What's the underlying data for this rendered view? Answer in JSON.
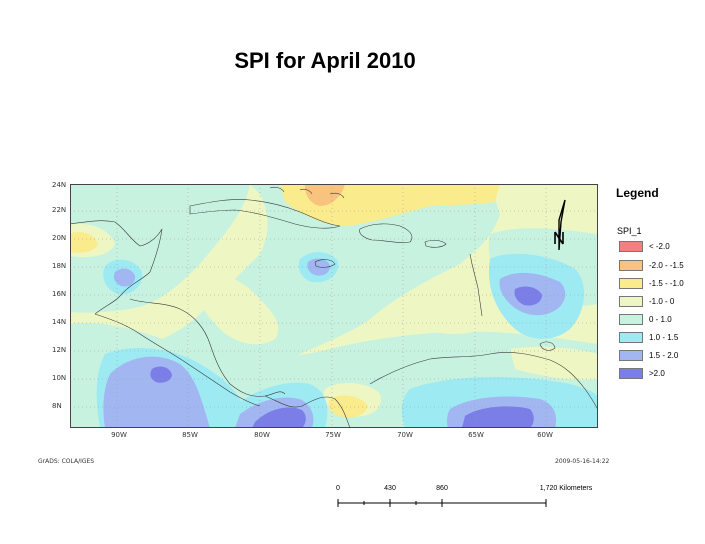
{
  "title": "SPI for  April 2010",
  "legend": {
    "heading": "Legend",
    "field": "SPI_1",
    "items": [
      {
        "label": "< -2.0",
        "color": "#f47f7f"
      },
      {
        "label": "-2.0 - -1.5",
        "color": "#f8c37f"
      },
      {
        "label": "-1.5 -  -1.0",
        "color": "#faeb8c"
      },
      {
        "label": "-1.0 - 0",
        "color": "#eef7c3"
      },
      {
        "label": "0 - 1.0",
        "color": "#c6f2df"
      },
      {
        "label": "1.0 - 1.5",
        "color": "#9deaf3"
      },
      {
        "label": "1.5 - 2.0",
        "color": "#a2b7f2"
      },
      {
        "label": ">2.0",
        "color": "#7b7ee6"
      }
    ]
  },
  "axes": {
    "lat_labels": [
      "24N",
      "22N",
      "20N",
      "18N",
      "16N",
      "14N",
      "12N",
      "10N",
      "8N"
    ],
    "lon_labels": [
      "90W",
      "85W",
      "80W",
      "75W",
      "70W",
      "65W",
      "60W"
    ]
  },
  "footer": {
    "left": "GrADS: COLA/IGES",
    "right": "2009-05-16-14:22"
  },
  "scale_bar": {
    "ticks": [
      "0",
      "430",
      "860",
      "1,720 Kilometers"
    ]
  }
}
